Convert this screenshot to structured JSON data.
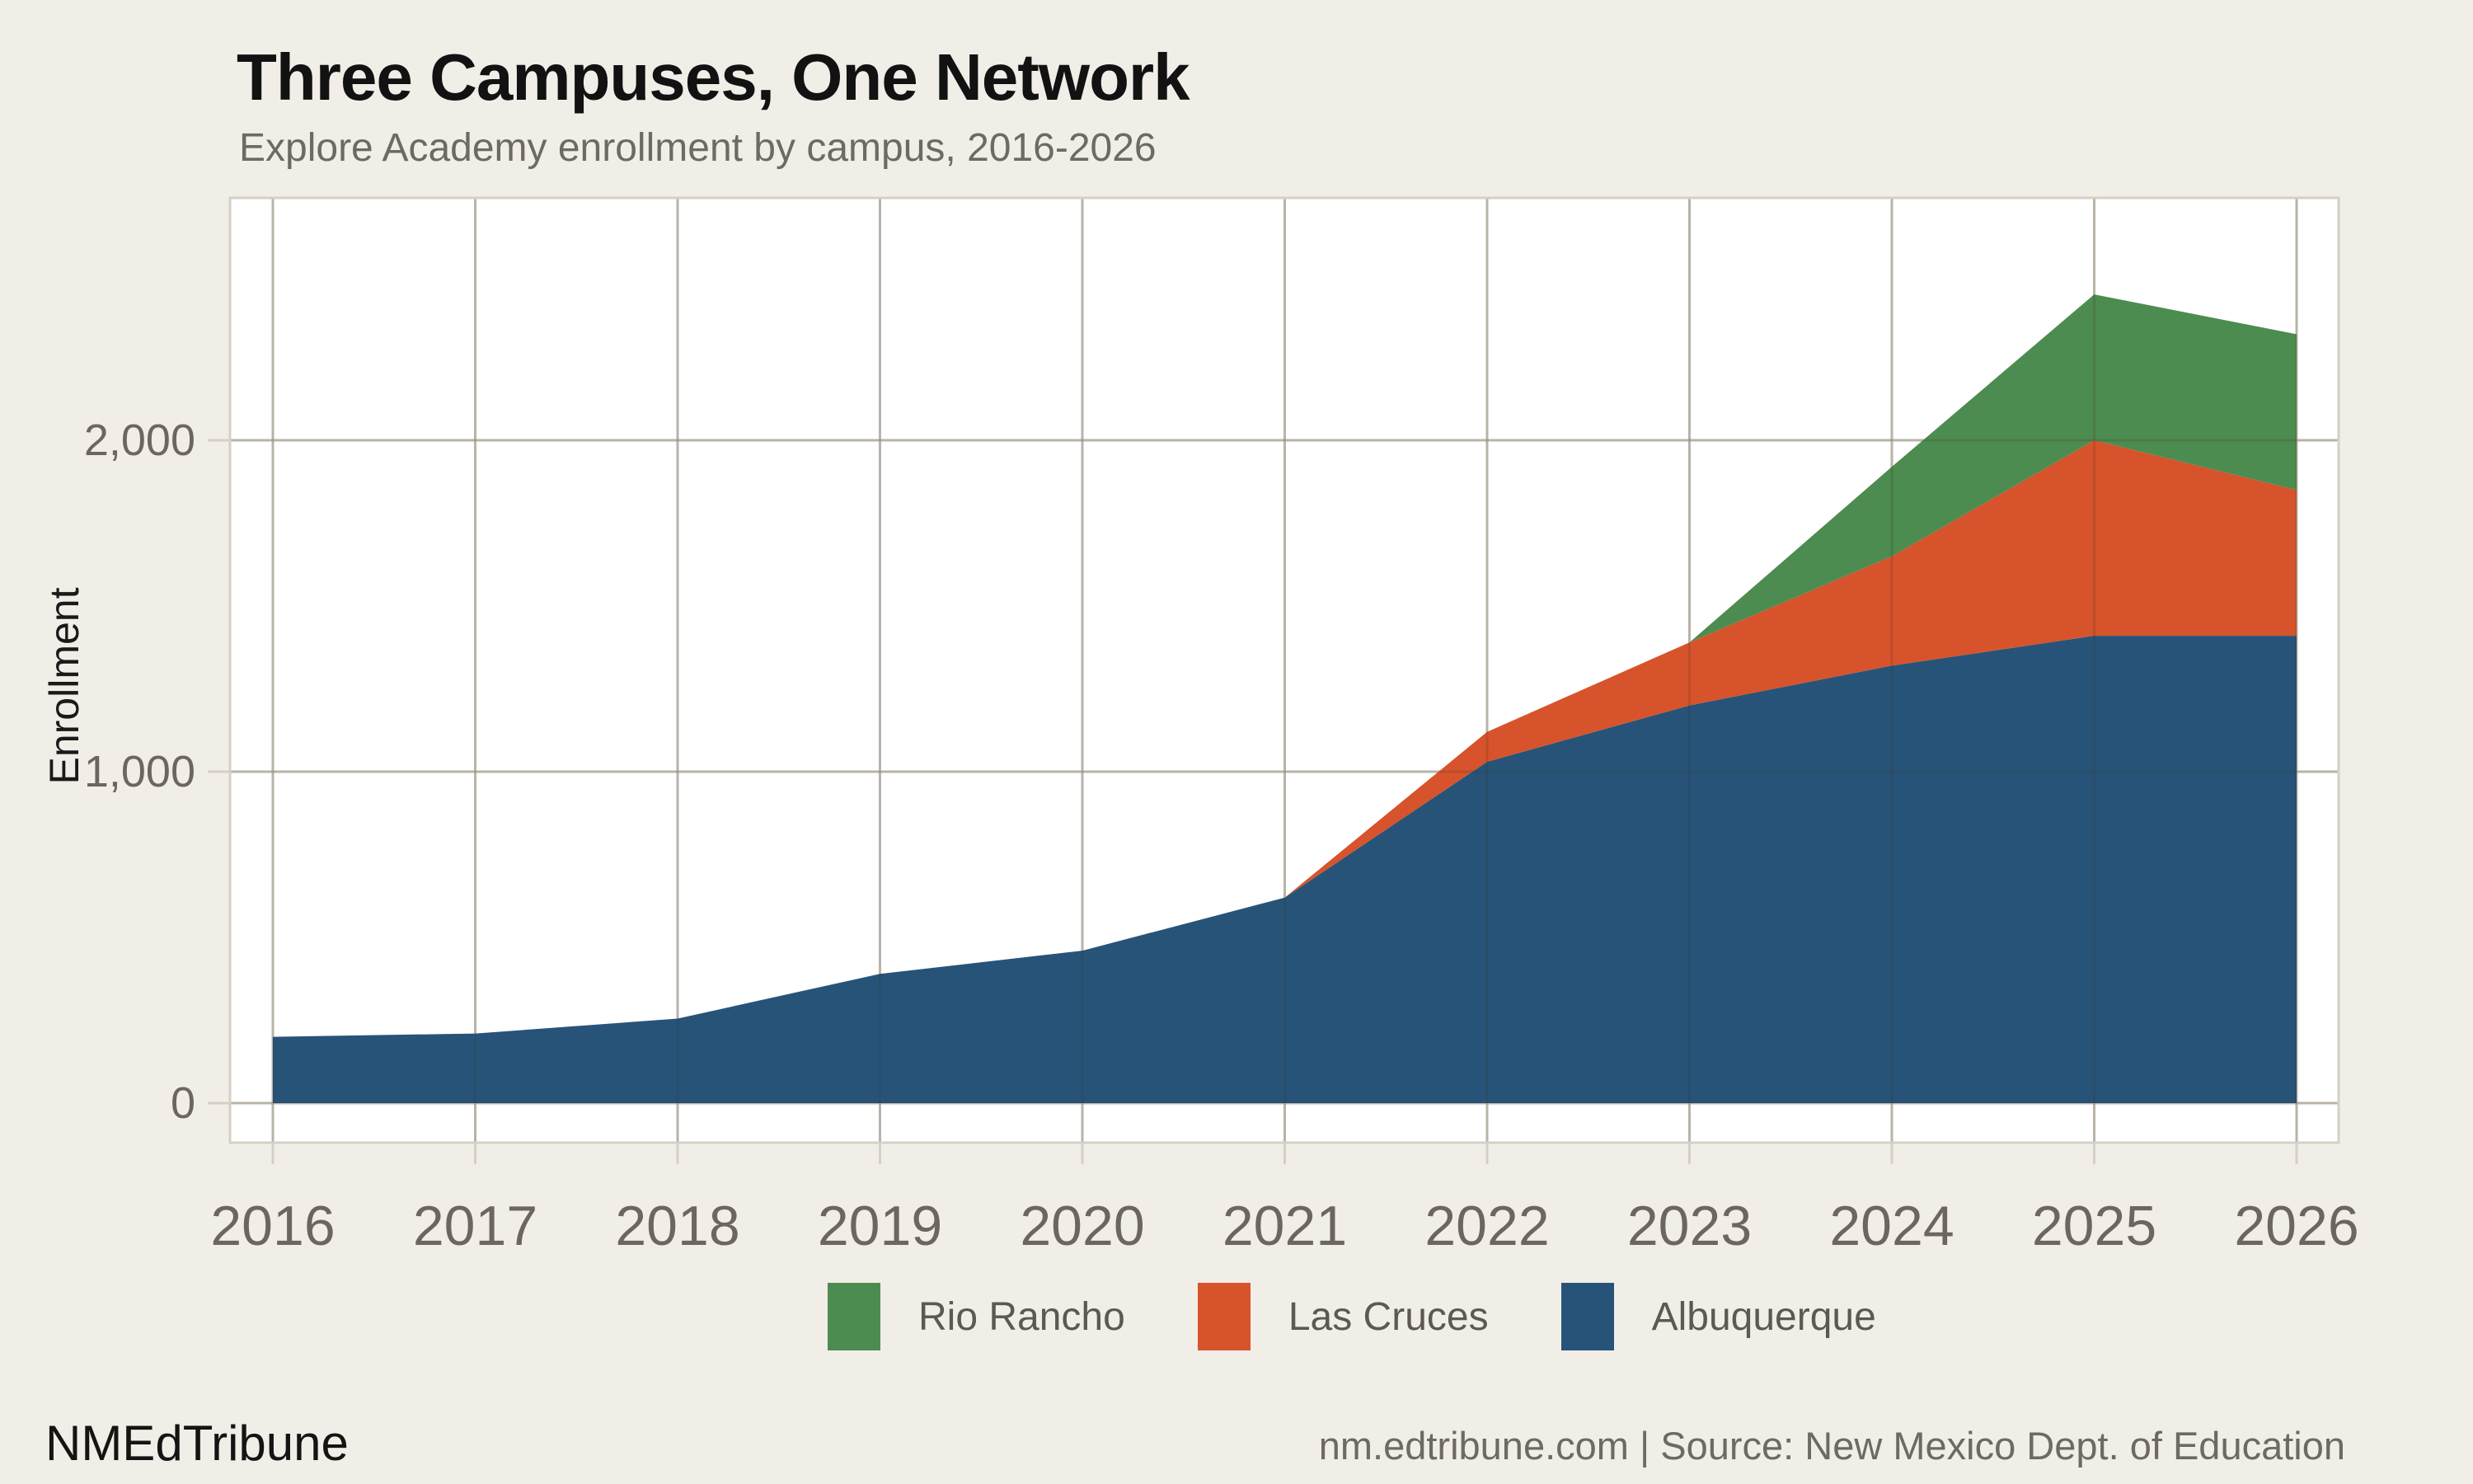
{
  "header": {
    "title": "Three Campuses, One Network",
    "subtitle": "Explore Academy enrollment by campus, 2016-2026"
  },
  "chart_data": {
    "type": "area",
    "stacked": true,
    "title": "Three Campuses, One Network",
    "subtitle": "Explore Academy enrollment by campus, 2016-2026",
    "xlabel": "",
    "ylabel": "Enrollment",
    "x": [
      2016,
      2017,
      2018,
      2019,
      2020,
      2021,
      2022,
      2023,
      2024,
      2025,
      2026
    ],
    "x_tick_labels": [
      "2016",
      "2017",
      "2018",
      "2019",
      "2020",
      "2021",
      "2022",
      "2023",
      "2024",
      "2025",
      "2026"
    ],
    "series": [
      {
        "name": "Albuquerque",
        "color": "#275379",
        "values": [
          200,
          210,
          255,
          390,
          460,
          620,
          1030,
          1200,
          1320,
          1410,
          1410
        ]
      },
      {
        "name": "Las Cruces",
        "color": "#d7532b",
        "values": [
          0,
          0,
          0,
          0,
          0,
          0,
          90,
          190,
          330,
          590,
          440
        ]
      },
      {
        "name": "Rio Rancho",
        "color": "#4d8c50",
        "values": [
          0,
          0,
          0,
          0,
          0,
          0,
          0,
          0,
          270,
          440,
          470
        ]
      }
    ],
    "stack_order_note": "Albuquerque on bottom, then Las Cruces, Rio Rancho on top",
    "y_ticks": [
      {
        "value": 0,
        "label": "0"
      },
      {
        "value": 1000,
        "label": "1,000"
      },
      {
        "value": 2000,
        "label": "2,000"
      }
    ],
    "ylim": [
      0,
      2730
    ],
    "grid": "both",
    "legend_position": "bottom-center",
    "legend": [
      {
        "label": "Rio Rancho",
        "color": "#4d8c50"
      },
      {
        "label": "Las Cruces",
        "color": "#d7532b"
      },
      {
        "label": "Albuquerque",
        "color": "#275379"
      }
    ],
    "colors": {
      "background": "#f1eee8",
      "plot_background": "#ffffff",
      "gridline": "#d5d0c6",
      "axis_text": "#6b6661"
    }
  },
  "footer": {
    "brand": "NMEdTribune",
    "source": "nm.edtribune.com | Source: New Mexico Dept. of Education"
  }
}
